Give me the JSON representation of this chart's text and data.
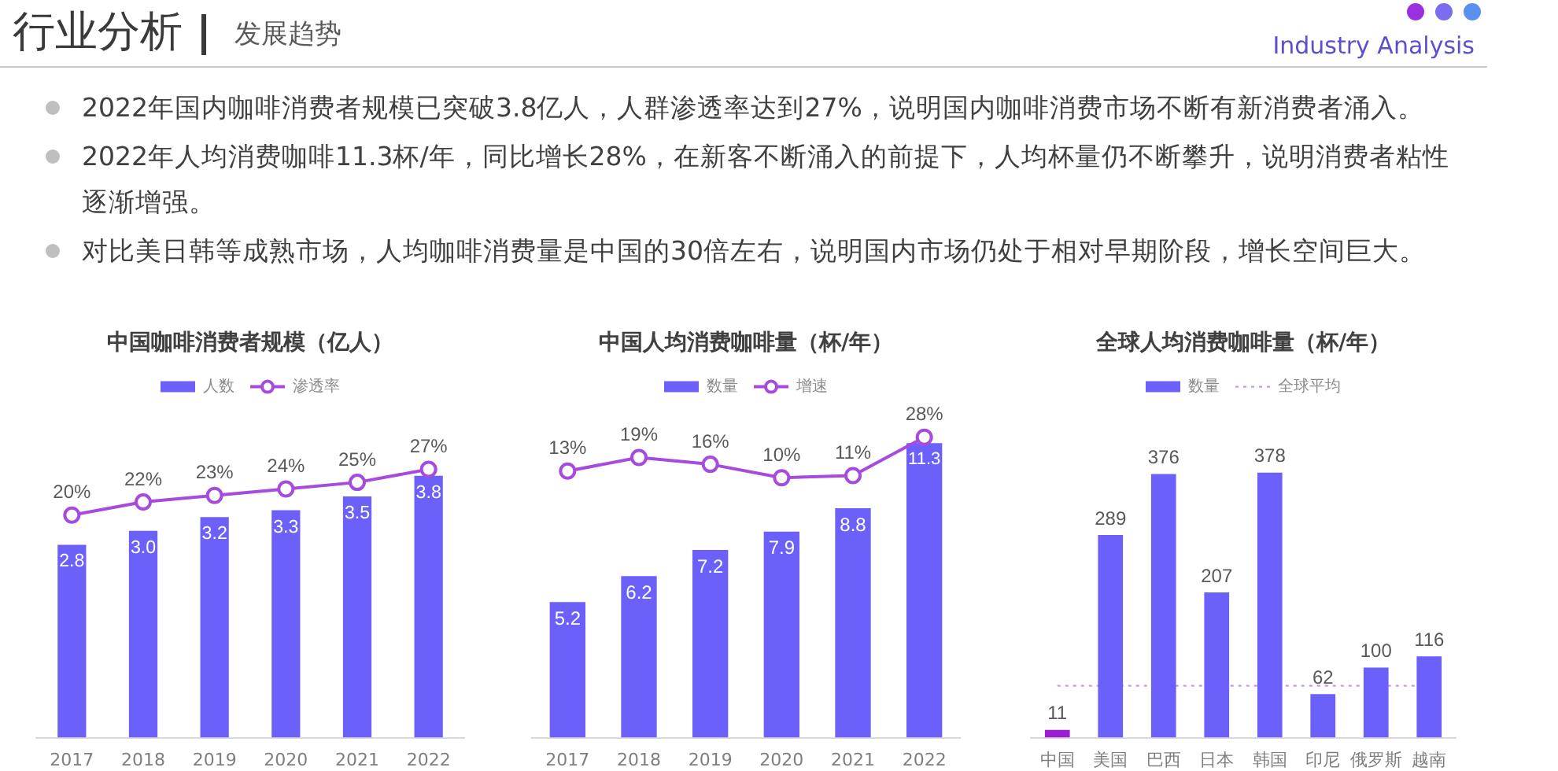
{
  "chart_data": [
    {
      "type": "other",
      "title": "行业分析",
      "subtitle": "发展趋势",
      "annotations": [
        "Industry Analysis",
        "2022年国内咖啡消费者规模已突破3.8亿人，人群渗透率达到27%，说明国内咖啡消费市场不断有新消费者涌入。",
        "2022年人均消费咖啡11.3杯/年，同比增长28%，在新客不断涌入的前提下，人均杯量仍不断攀升，说明消费者粘性逐渐增强。",
        "对比美日韩等成熟市场，人均咖啡消费量是中国的30倍左右，说明国内市场仍处于相对早期阶段，增长空间巨大。"
      ]
    },
    {
      "type": "bar",
      "title": "中国咖啡消费者规模（亿人）",
      "categories": [
        "2017",
        "2018",
        "2019",
        "2020",
        "2021",
        "2022"
      ],
      "series": [
        {
          "name": "人数",
          "type": "bar",
          "color": "#6c60fa",
          "values": [
            2.8,
            3.0,
            3.2,
            3.3,
            3.5,
            3.8
          ],
          "value_labels": [
            "2.8",
            "3.0",
            "3.2",
            "3.3",
            "3.5",
            "3.8"
          ]
        },
        {
          "name": "渗透率",
          "type": "line",
          "axis": "y2",
          "color": "#a64bdc",
          "values": [
            20,
            22,
            23,
            24,
            25,
            27
          ],
          "value_labels": [
            "20%",
            "22%",
            "23%",
            "24%",
            "25%",
            "27%"
          ]
        }
      ],
      "tick_labels": "x",
      "legend": "top",
      "marker": "circle"
    },
    {
      "type": "bar",
      "title": "中国人均消费咖啡量（杯/年）",
      "categories": [
        "2017",
        "2018",
        "2019",
        "2020",
        "2021",
        "2022"
      ],
      "series": [
        {
          "name": "数量",
          "type": "bar",
          "color": "#6c60fa",
          "values": [
            5.2,
            6.2,
            7.2,
            7.9,
            8.8,
            11.3
          ],
          "value_labels": [
            "5.2",
            "6.2",
            "7.2",
            "7.9",
            "8.8",
            "11.3"
          ]
        },
        {
          "name": "增速",
          "type": "line",
          "axis": "y2",
          "color": "#a64bdc",
          "values": [
            13,
            19,
            16,
            10,
            11,
            28
          ],
          "value_labels": [
            "13%",
            "19%",
            "16%",
            "10%",
            "11%",
            "28%"
          ]
        }
      ],
      "tick_labels": "x",
      "legend": "top",
      "marker": "circle"
    },
    {
      "type": "bar",
      "title": "全球人均消费咖啡量（杯/年）",
      "categories": [
        "中国",
        "美国",
        "巴西",
        "日本",
        "韩国",
        "印尼",
        "俄罗斯",
        "越南"
      ],
      "series": [
        {
          "name": "数量",
          "type": "bar",
          "color": "#6c60fa",
          "colors": [
            "#9b1fd1",
            "#6c60fa",
            "#6c60fa",
            "#6c60fa",
            "#6c60fa",
            "#6c60fa",
            "#6c60fa",
            "#6c60fa"
          ],
          "values": [
            11,
            289,
            376,
            207,
            378,
            62,
            100,
            116
          ],
          "value_labels": [
            "11",
            "289",
            "376",
            "207",
            "378",
            "62",
            "100",
            "116"
          ]
        }
      ],
      "ref_lines": [
        {
          "axis": "y",
          "value": 74,
          "label": "全球平均",
          "color": "#c39be6",
          "line_style": "dotted"
        }
      ],
      "tick_labels": "x",
      "legend": "top"
    }
  ]
}
